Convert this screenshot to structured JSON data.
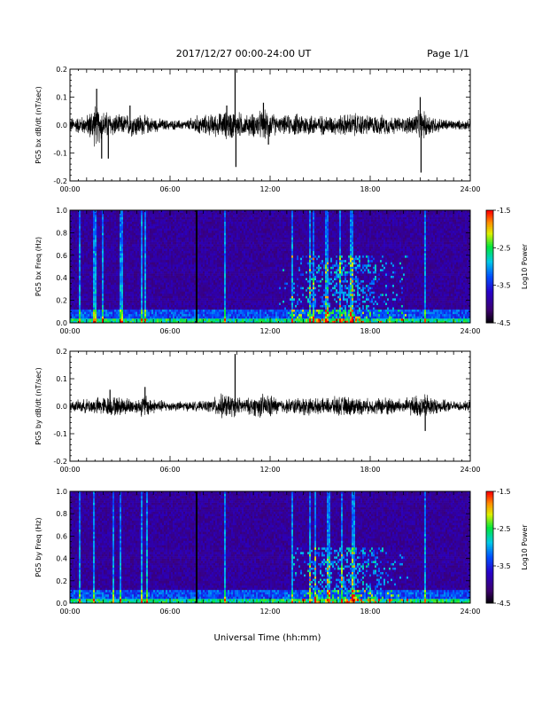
{
  "header": {
    "date_range": "2017/12/27  00:00-24:00 UT",
    "page": "Page 1/1"
  },
  "x_axis_label": "Universal Time (hh:mm)",
  "colors": {
    "waveform": "#000000",
    "spectrogram_background": "#2a0a55",
    "colorbar": [
      "#000000",
      "#4b0082",
      "#0000ff",
      "#00bfff",
      "#00ff00",
      "#ffff00",
      "#ff8c00",
      "#ff0000"
    ]
  },
  "chart_data": [
    {
      "type": "line",
      "ylabel": "PG5 bx dB/dt (nT/sec)",
      "ylim": [
        -0.2,
        0.2
      ],
      "yticks": [
        -0.2,
        -0.1,
        0.0,
        0.1,
        0.2
      ],
      "ytick_labels": [
        "-0.2",
        "-0.1",
        "0.0",
        "0.1",
        "0.2"
      ],
      "xlim_hours": [
        0,
        24
      ],
      "xtick_labels": [
        "00:00",
        "06:00",
        "12:00",
        "18:00",
        "24:00"
      ],
      "envelope": {
        "hours": [
          0,
          1,
          1.5,
          2,
          3,
          4,
          5,
          6,
          7,
          7.5,
          8,
          9,
          9.5,
          10,
          10.5,
          11,
          11.5,
          12,
          12.5,
          13,
          14,
          15,
          16,
          17,
          18,
          19,
          20,
          21,
          21.5,
          22,
          23,
          24
        ],
        "amplitude": [
          0.03,
          0.04,
          0.09,
          0.06,
          0.04,
          0.05,
          0.03,
          0.02,
          0.02,
          0.04,
          0.04,
          0.05,
          0.06,
          0.06,
          0.04,
          0.05,
          0.06,
          0.06,
          0.03,
          0.04,
          0.05,
          0.04,
          0.04,
          0.05,
          0.04,
          0.04,
          0.03,
          0.06,
          0.05,
          0.03,
          0.02,
          0.02
        ]
      },
      "spikes": [
        {
          "hour": 1.6,
          "value": 0.13
        },
        {
          "hour": 1.9,
          "value": -0.12
        },
        {
          "hour": 2.3,
          "value": -0.12
        },
        {
          "hour": 3.6,
          "value": 0.07
        },
        {
          "hour": 9.4,
          "value": 0.07
        },
        {
          "hour": 9.9,
          "value": 0.2
        },
        {
          "hour": 9.95,
          "value": -0.15
        },
        {
          "hour": 11.6,
          "value": 0.08
        },
        {
          "hour": 11.9,
          "value": -0.07
        },
        {
          "hour": 21.0,
          "value": 0.1
        },
        {
          "hour": 21.05,
          "value": -0.17
        }
      ]
    },
    {
      "type": "heatmap",
      "ylabel": "PG5 bx Freq (Hz)",
      "ylim": [
        0.0,
        1.0
      ],
      "yticks": [
        0.0,
        0.2,
        0.4,
        0.6,
        0.8,
        1.0
      ],
      "ytick_labels": [
        "0.0",
        "0.2",
        "0.4",
        "0.6",
        "0.8",
        "1.0"
      ],
      "xlim_hours": [
        0,
        24
      ],
      "xtick_labels": [
        "00:00",
        "06:00",
        "12:00",
        "18:00",
        "24:00"
      ],
      "colorbar": {
        "label": "Log10 Power",
        "range": [
          -4.5,
          -1.5
        ],
        "ticks": [
          -1.5,
          -2.5,
          -3.5,
          -4.5
        ],
        "tick_labels": [
          "-1.5",
          "-2.5",
          "-3.5",
          "-4.5"
        ]
      },
      "vertical_bands_hours": [
        0.6,
        1.5,
        2.0,
        3.0,
        3.1,
        4.3,
        4.5,
        9.3,
        13.3,
        14.4,
        14.6,
        15.4,
        16.2,
        16.9,
        21.3
      ],
      "data_gap_hour": 7.6,
      "activity_region": {
        "hours": [
          12.5,
          20.5
        ],
        "freq_max": 0.6
      }
    },
    {
      "type": "line",
      "ylabel": "PG5 by dB/dt (nT/sec)",
      "ylim": [
        -0.2,
        0.2
      ],
      "yticks": [
        -0.2,
        -0.1,
        0.0,
        0.1,
        0.2
      ],
      "ytick_labels": [
        "-0.2",
        "-0.1",
        "0.0",
        "0.1",
        "0.2"
      ],
      "xlim_hours": [
        0,
        24
      ],
      "xtick_labels": [
        "00:00",
        "06:00",
        "12:00",
        "18:00",
        "24:00"
      ],
      "envelope": {
        "hours": [
          0,
          1,
          2,
          3,
          4,
          4.5,
          5,
          6,
          7,
          8,
          8.5,
          9,
          9.5,
          10,
          10.5,
          11,
          11.5,
          12,
          12.5,
          13,
          14,
          15,
          16,
          17,
          18,
          19,
          20,
          21,
          21.5,
          22,
          23,
          24
        ],
        "amplitude": [
          0.02,
          0.03,
          0.04,
          0.04,
          0.03,
          0.05,
          0.03,
          0.02,
          0.02,
          0.02,
          0.03,
          0.05,
          0.05,
          0.04,
          0.03,
          0.04,
          0.05,
          0.05,
          0.03,
          0.03,
          0.04,
          0.03,
          0.04,
          0.04,
          0.03,
          0.04,
          0.03,
          0.05,
          0.05,
          0.03,
          0.02,
          0.02
        ]
      },
      "spikes": [
        {
          "hour": 2.4,
          "value": 0.06
        },
        {
          "hour": 4.5,
          "value": 0.07
        },
        {
          "hour": 9.9,
          "value": 0.19
        },
        {
          "hour": 21.3,
          "value": -0.09
        }
      ]
    },
    {
      "type": "heatmap",
      "ylabel": "PG5 by Freq (Hz)",
      "ylim": [
        0.0,
        1.0
      ],
      "yticks": [
        0.0,
        0.2,
        0.4,
        0.6,
        0.8,
        1.0
      ],
      "ytick_labels": [
        "0.0",
        "0.2",
        "0.4",
        "0.6",
        "0.8",
        "1.0"
      ],
      "xlim_hours": [
        0,
        24
      ],
      "xtick_labels": [
        "00:00",
        "06:00",
        "12:00",
        "18:00",
        "24:00"
      ],
      "colorbar": {
        "label": "Log10 Power",
        "range": [
          -4.5,
          -1.5
        ],
        "ticks": [
          -1.5,
          -2.5,
          -3.5,
          -4.5
        ],
        "tick_labels": [
          "-1.5",
          "-2.5",
          "-3.5",
          "-4.5"
        ]
      },
      "vertical_bands_hours": [
        0.6,
        1.4,
        2.6,
        3.0,
        4.3,
        4.6,
        9.3,
        13.3,
        14.4,
        14.7,
        15.5,
        16.3,
        17.0,
        21.3
      ],
      "data_gap_hour": 7.6,
      "activity_region": {
        "hours": [
          13.0,
          20.5
        ],
        "freq_max": 0.5
      }
    }
  ]
}
